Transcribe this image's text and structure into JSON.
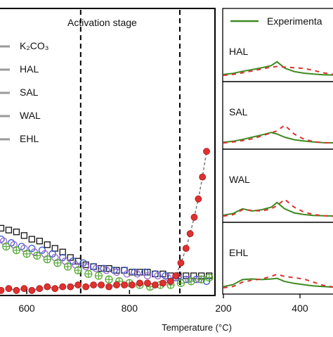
{
  "chart_data": [
    {
      "type": "scatter",
      "xlabel": "Temperature (°C)",
      "xlim": [
        548,
        965
      ],
      "xticks": [
        600,
        800
      ],
      "stage_lines": [
        705,
        898
      ],
      "annotations": [
        {
          "text": "Activation stage"
        }
      ],
      "legend": {
        "placement": "left",
        "entries": [
          {
            "text": "K₂CO₃",
            "color": "#9a9a9a"
          },
          {
            "text": "HAL",
            "color": "#9a9a9a"
          },
          {
            "text": "SAL",
            "color": "#9a9a9a"
          },
          {
            "text": "WAL",
            "color": "#9a9a9a"
          },
          {
            "text": "EHL",
            "color": "#9a9a9a"
          }
        ]
      },
      "series": [
        {
          "color": "#111111",
          "marker": "open-square",
          "points": [
            [
              550,
              0.36
            ],
            [
              565,
              0.35
            ],
            [
              580,
              0.34
            ],
            [
              595,
              0.32
            ],
            [
              610,
              0.3
            ],
            [
              625,
              0.29
            ],
            [
              640,
              0.27
            ],
            [
              655,
              0.25
            ],
            [
              670,
              0.23
            ],
            [
              685,
              0.2
            ],
            [
              700,
              0.18
            ],
            [
              715,
              0.16
            ],
            [
              730,
              0.15
            ],
            [
              745,
              0.14
            ],
            [
              760,
              0.14
            ],
            [
              775,
              0.13
            ],
            [
              790,
              0.13
            ],
            [
              805,
              0.12
            ],
            [
              820,
              0.12
            ],
            [
              835,
              0.12
            ],
            [
              850,
              0.11
            ],
            [
              865,
              0.11
            ],
            [
              880,
              0.1
            ],
            [
              895,
              0.1
            ],
            [
              910,
              0.1
            ],
            [
              925,
              0.1
            ],
            [
              940,
              0.1
            ],
            [
              955,
              0.1
            ]
          ]
        },
        {
          "color": "#3355cc",
          "marker": "open-circle",
          "points": [
            [
              550,
              0.3
            ],
            [
              570,
              0.28
            ],
            [
              590,
              0.26
            ],
            [
              610,
              0.25
            ],
            [
              630,
              0.24
            ],
            [
              650,
              0.22
            ],
            [
              670,
              0.2
            ],
            [
              690,
              0.18
            ],
            [
              710,
              0.17
            ],
            [
              730,
              0.15
            ],
            [
              750,
              0.14
            ],
            [
              770,
              0.13
            ],
            [
              790,
              0.13
            ],
            [
              810,
              0.12
            ],
            [
              830,
              0.12
            ],
            [
              850,
              0.11
            ],
            [
              870,
              0.1
            ],
            [
              890,
              0.09
            ],
            [
              910,
              0.08
            ],
            [
              930,
              0.08
            ],
            [
              950,
              0.07
            ]
          ]
        },
        {
          "color": "#9966cc",
          "marker": "open-circle",
          "points": [
            [
              555,
              0.29
            ],
            [
              575,
              0.27
            ],
            [
              595,
              0.25
            ],
            [
              615,
              0.23
            ],
            [
              635,
              0.22
            ],
            [
              655,
              0.2
            ],
            [
              675,
              0.18
            ],
            [
              695,
              0.16
            ],
            [
              715,
              0.15
            ],
            [
              735,
              0.14
            ],
            [
              755,
              0.13
            ],
            [
              775,
              0.12
            ],
            [
              795,
              0.11
            ],
            [
              815,
              0.11
            ],
            [
              835,
              0.1
            ],
            [
              855,
              0.1
            ],
            [
              875,
              0.09
            ],
            [
              895,
              0.09
            ],
            [
              915,
              0.08
            ],
            [
              935,
              0.08
            ]
          ]
        },
        {
          "color": "#55aa33",
          "marker": "circle-plus",
          "points": [
            [
              560,
              0.26
            ],
            [
              580,
              0.24
            ],
            [
              600,
              0.22
            ],
            [
              620,
              0.21
            ],
            [
              640,
              0.19
            ],
            [
              660,
              0.17
            ],
            [
              680,
              0.15
            ],
            [
              700,
              0.13
            ],
            [
              720,
              0.11
            ],
            [
              740,
              0.1
            ],
            [
              760,
              0.08
            ],
            [
              780,
              0.07
            ],
            [
              800,
              0.06
            ],
            [
              820,
              0.05
            ],
            [
              840,
              0.04
            ],
            [
              860,
              0.05
            ],
            [
              880,
              0.05
            ],
            [
              900,
              0.06
            ],
            [
              920,
              0.07
            ],
            [
              940,
              0.08
            ],
            [
              955,
              0.09
            ]
          ]
        },
        {
          "color": "#e03030",
          "marker": "filled-circle",
          "points": [
            [
              550,
              0.02
            ],
            [
              565,
              0.03
            ],
            [
              580,
              0.02
            ],
            [
              595,
              0.03
            ],
            [
              610,
              0.02
            ],
            [
              625,
              0.03
            ],
            [
              640,
              0.04
            ],
            [
              655,
              0.03
            ],
            [
              670,
              0.04
            ],
            [
              685,
              0.04
            ],
            [
              700,
              0.05
            ],
            [
              715,
              0.04
            ],
            [
              730,
              0.05
            ],
            [
              745,
              0.05
            ],
            [
              760,
              0.04
            ],
            [
              775,
              0.05
            ],
            [
              790,
              0.05
            ],
            [
              805,
              0.05
            ],
            [
              820,
              0.06
            ],
            [
              835,
              0.06
            ],
            [
              850,
              0.05
            ],
            [
              865,
              0.06
            ],
            [
              880,
              0.07
            ],
            [
              890,
              0.1
            ],
            [
              900,
              0.17
            ],
            [
              910,
              0.25
            ],
            [
              918,
              0.33
            ],
            [
              926,
              0.42
            ],
            [
              934,
              0.52
            ],
            [
              942,
              0.64
            ],
            [
              950,
              0.78
            ]
          ]
        }
      ]
    },
    {
      "type": "line",
      "xlabel": "",
      "xlim": [
        200,
        490
      ],
      "xticks": [
        200,
        400
      ],
      "legend": {
        "placement": "top",
        "entries": [
          {
            "text": "Experimenta",
            "color": "#3d8a1f"
          }
        ]
      },
      "x": [
        200,
        225,
        250,
        275,
        300,
        325,
        340,
        360,
        385,
        410,
        435,
        460,
        490
      ],
      "panels": [
        {
          "label": "HAL",
          "experimental": [
            0.05,
            0.08,
            0.15,
            0.2,
            0.26,
            0.33,
            0.45,
            0.25,
            0.14,
            0.09,
            0.06,
            0.04,
            0.03
          ],
          "dashed": [
            0.02,
            0.05,
            0.1,
            0.16,
            0.22,
            0.28,
            0.3,
            0.28,
            0.26,
            0.24,
            0.18,
            0.1,
            0.05
          ]
        },
        {
          "label": "SAL",
          "experimental": [
            0.04,
            0.07,
            0.13,
            0.2,
            0.27,
            0.35,
            0.3,
            0.2,
            0.12,
            0.08,
            0.05,
            0.03,
            0.02
          ],
          "dashed": [
            0.02,
            0.05,
            0.09,
            0.15,
            0.24,
            0.34,
            0.4,
            0.58,
            0.3,
            0.14,
            0.06,
            0.03,
            0.01
          ]
        },
        {
          "label": "WAL",
          "experimental": [
            0.05,
            0.1,
            0.25,
            0.18,
            0.22,
            0.3,
            0.45,
            0.25,
            0.12,
            0.07,
            0.04,
            0.03,
            0.02
          ],
          "dashed": [
            0.02,
            0.06,
            0.22,
            0.2,
            0.18,
            0.25,
            0.35,
            0.55,
            0.3,
            0.15,
            0.07,
            0.03,
            0.01
          ]
        },
        {
          "label": "EHL",
          "experimental": [
            0.06,
            0.12,
            0.28,
            0.3,
            0.28,
            0.3,
            0.32,
            0.22,
            0.16,
            0.12,
            0.08,
            0.06,
            0.04
          ],
          "dashed": [
            0.02,
            0.06,
            0.2,
            0.26,
            0.3,
            0.38,
            0.45,
            0.38,
            0.34,
            0.3,
            0.2,
            0.1,
            0.04
          ]
        }
      ]
    }
  ]
}
